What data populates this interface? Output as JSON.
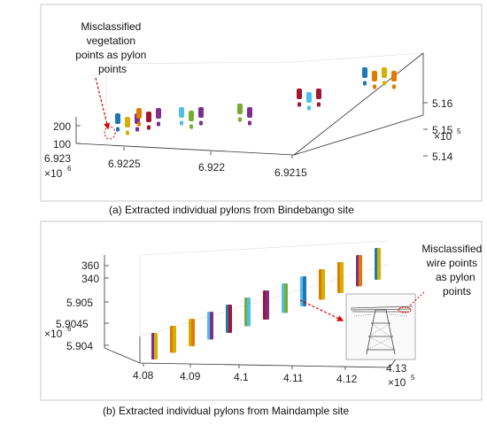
{
  "chart_data": [
    {
      "type": "scatter",
      "subtype": "3d-point-cloud",
      "caption": "(a) Extracted individual pylons from Bindebango site",
      "x_ticks": [
        "6.9225",
        "6.922",
        "6.9215"
      ],
      "x_origin_tick": "6.923",
      "x_exponent": "6",
      "y_ticks": [
        "5.16",
        "5.15",
        "5.14"
      ],
      "y_exponent": "5",
      "z_ticks": [
        "200",
        "100"
      ],
      "annotation": "Misclassified vegetation points as pylon points",
      "annotation_lines": [
        "Misclassified",
        "vegetation",
        "points as pylon",
        "points"
      ],
      "groups": [
        {
          "colors": [
            "#1f77b4",
            "#d4b000",
            "#7e2f8e"
          ]
        },
        {
          "colors": [
            "#e07b00",
            "#a2142f",
            "#7e2f8e"
          ]
        },
        {
          "colors": [
            "#4dbeee",
            "#77ac30",
            "#7e2f8e"
          ]
        },
        {
          "colors": [
            "#77ac30",
            "#7e2f8e"
          ]
        },
        {
          "colors": [
            "#a2142f",
            "#4dbeee",
            "#a2142f"
          ]
        },
        {
          "colors": [
            "#1f77b4",
            "#e07b00",
            "#d4b000",
            "#e07b00"
          ]
        }
      ],
      "colors": {
        "annotation": "#e00000"
      }
    },
    {
      "type": "scatter",
      "subtype": "3d-point-cloud",
      "caption": "(b) Extracted individual pylons from Maindample  site",
      "x_ticks": [
        "4.08",
        "4.09",
        "4.1",
        "4.11",
        "4.12",
        "4.13"
      ],
      "x_exponent": "5",
      "y_ticks": [
        "5.905",
        "5.9045",
        "5.904"
      ],
      "y_exponent": "6",
      "z_ticks": [
        "360",
        "340"
      ],
      "annotation": "Misclassified wire points as pylon points",
      "annotation_lines": [
        "Misclassified",
        "wire points",
        "as pylon",
        "points"
      ],
      "pylons": [
        {
          "colors": [
            "#7e2f8e",
            "#d4b000"
          ]
        },
        {
          "colors": [
            "#e07b00",
            "#d4b000"
          ]
        },
        {
          "colors": [
            "#d4b000",
            "#e07b00"
          ]
        },
        {
          "colors": [
            "#4dbeee",
            "#7e2f8e"
          ]
        },
        {
          "colors": [
            "#1f77b4",
            "#a2142f"
          ]
        },
        {
          "colors": [
            "#77ac30",
            "#4dbeee"
          ]
        },
        {
          "colors": [
            "#a2142f",
            "#7e2f8e"
          ]
        },
        {
          "colors": [
            "#4dbeee",
            "#77ac30"
          ]
        },
        {
          "colors": [
            "#4dbeee",
            "#1f77b4"
          ]
        },
        {
          "colors": [
            "#e07b00",
            "#d4b000"
          ]
        },
        {
          "colors": [
            "#e07b00",
            "#d4b000"
          ]
        },
        {
          "colors": [
            "#7e2f8e",
            "#e07b00"
          ]
        },
        {
          "colors": [
            "#1f77b4",
            "#d4b000"
          ]
        }
      ],
      "colors": {
        "annotation": "#e00000"
      }
    }
  ]
}
